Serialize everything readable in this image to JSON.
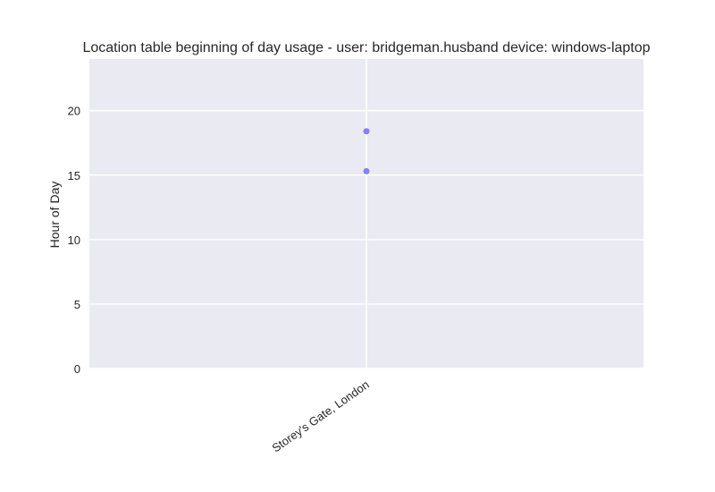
{
  "chart_data": {
    "type": "scatter",
    "title": "Location table beginning of day usage -  user: bridgeman.husband device: windows-laptop",
    "xlabel": "",
    "ylabel": "Hour of Day",
    "categories": [
      "Storey's Gate, London"
    ],
    "yticks": [
      0,
      5,
      10,
      15,
      20
    ],
    "ylim": [
      0,
      24
    ],
    "grid": true,
    "series": [
      {
        "color": "#6f6ff0",
        "points": [
          {
            "x": "Storey's Gate, London",
            "y": 18.4
          },
          {
            "x": "Storey's Gate, London",
            "y": 15.3
          }
        ]
      }
    ],
    "colors": {
      "plot_background": "#eaeaf2",
      "grid": "#ffffff",
      "marker": "#6f6ff0"
    }
  }
}
